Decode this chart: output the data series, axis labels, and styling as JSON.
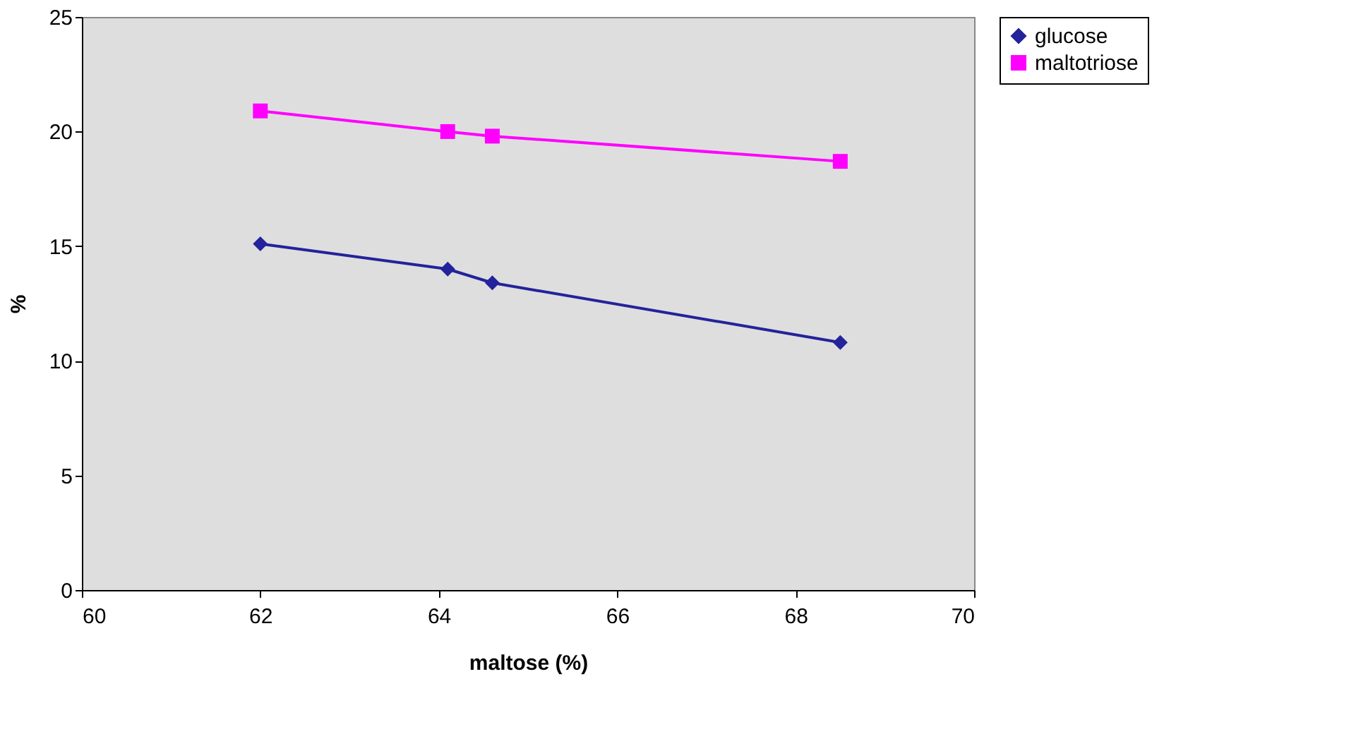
{
  "chart_data": {
    "type": "line",
    "xlabel": "maltose (%)",
    "ylabel": "%",
    "x": [
      62,
      64.1,
      64.6,
      68.5
    ],
    "series": [
      {
        "name": "glucose",
        "color": "#23239b",
        "marker": "diamond",
        "values": [
          15.1,
          14.0,
          13.4,
          10.8
        ]
      },
      {
        "name": "maltotriose",
        "color": "#ff00ff",
        "marker": "square",
        "values": [
          20.9,
          20.0,
          19.8,
          18.7
        ]
      }
    ],
    "xlim": [
      60,
      70
    ],
    "xticks": [
      60,
      62,
      64,
      66,
      68,
      70
    ],
    "ylim": [
      0,
      25
    ],
    "yticks": [
      0,
      5,
      10,
      15,
      20,
      25
    ],
    "grid": false,
    "legend": "right",
    "line_style": "solid"
  }
}
